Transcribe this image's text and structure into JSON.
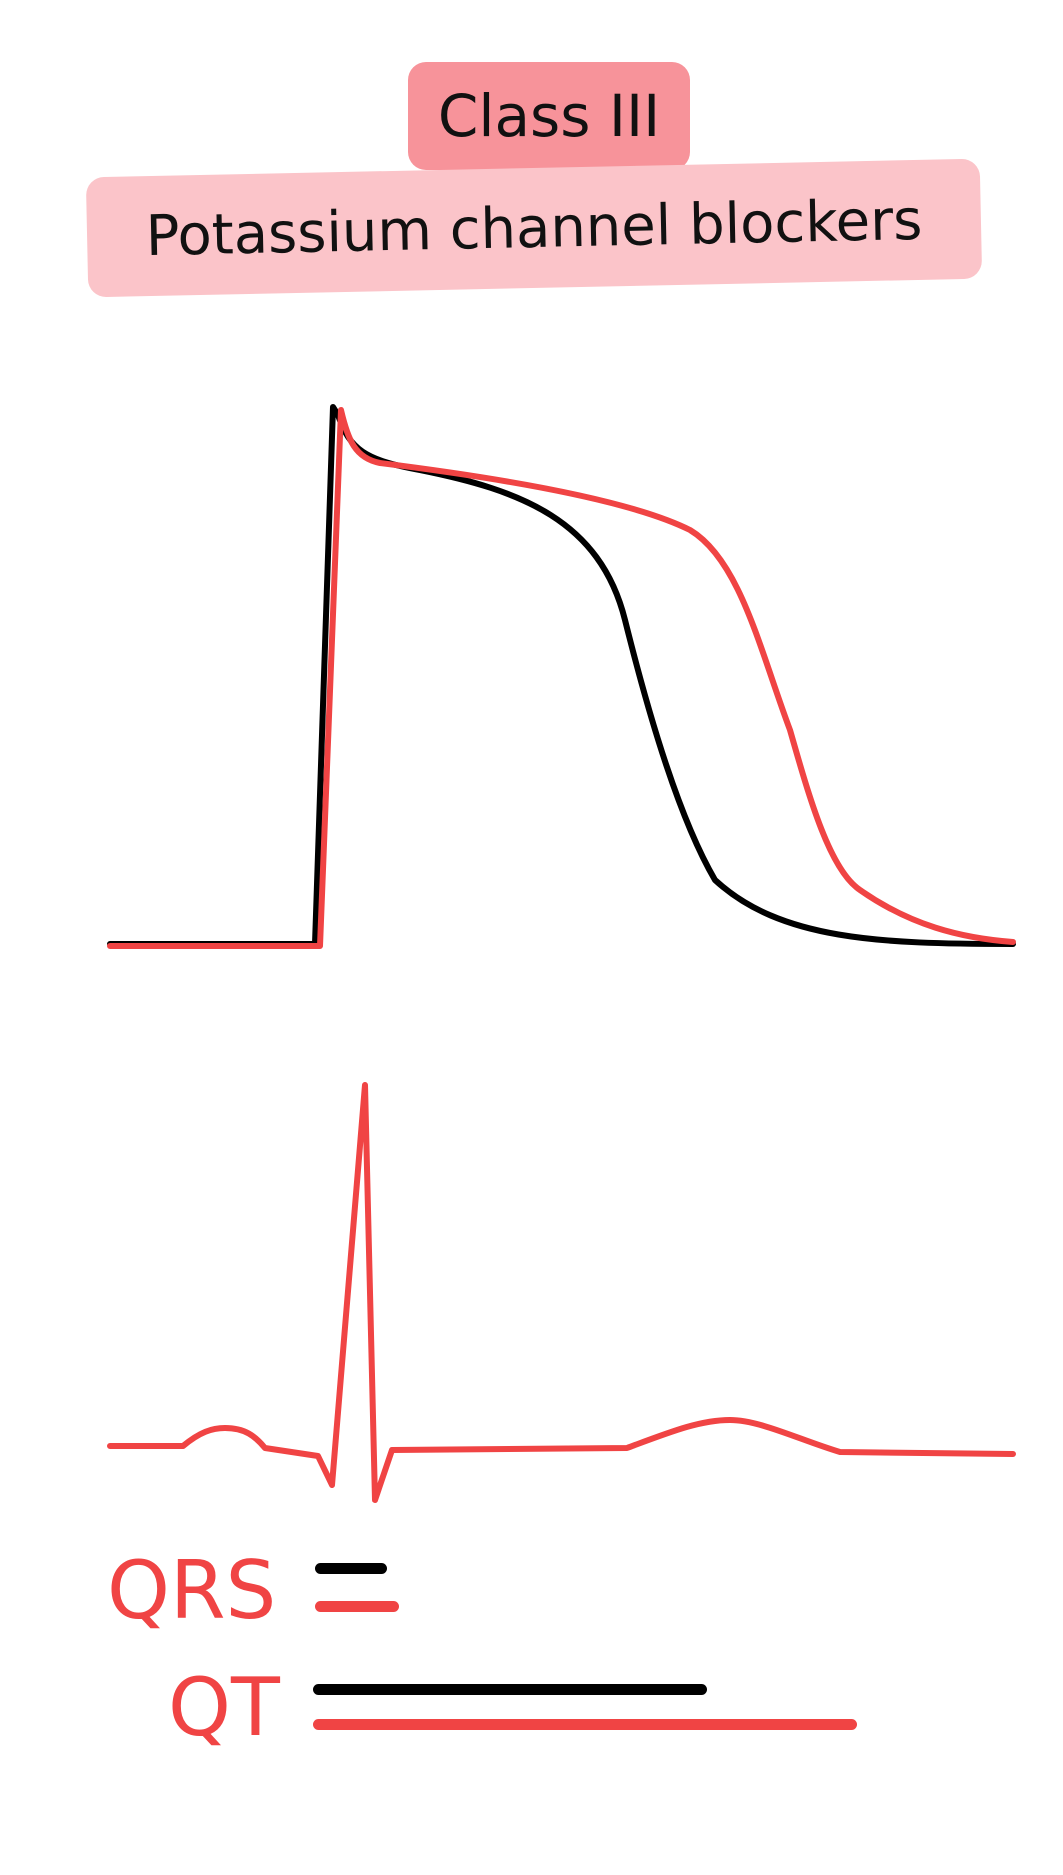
{
  "title": "Class III",
  "subtitle": "Potassium channel blockers",
  "colors": {
    "baseline_trace": "#000000",
    "drug_trace": "#f04444",
    "title_badge": "#f7939a",
    "subtitle_badge": "#fbc4c9"
  },
  "legend": {
    "qrs_label": "QRS",
    "qt_label": "QT"
  }
}
